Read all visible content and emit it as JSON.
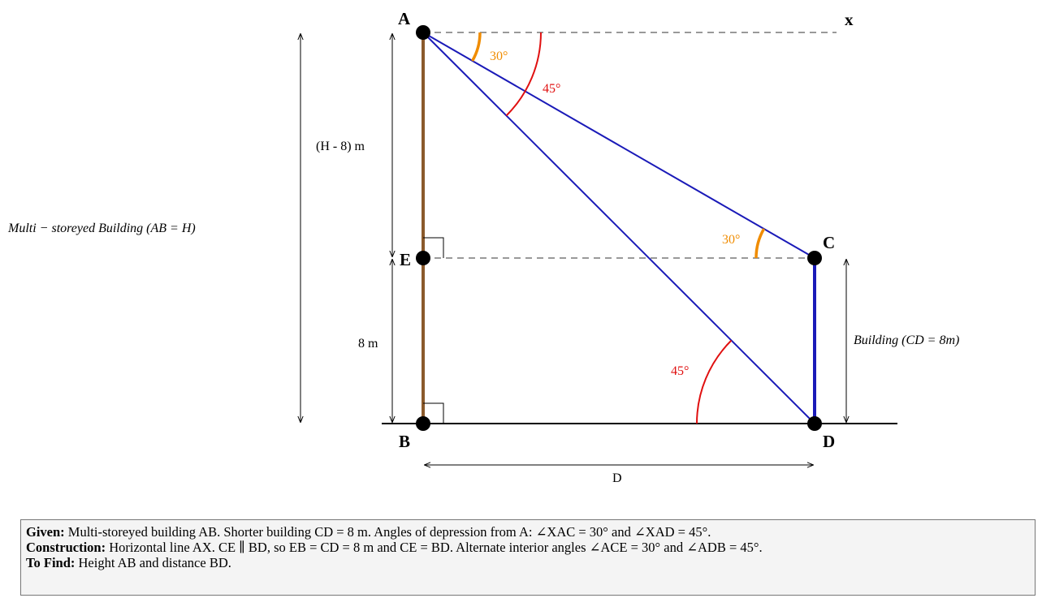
{
  "points": {
    "A": "A",
    "B": "B",
    "C": "C",
    "D": "D",
    "E": "E",
    "X": "x"
  },
  "angles": {
    "XAC": "30°",
    "XAD": "45°",
    "ACE": "30°",
    "ADB": "45°"
  },
  "dimensions": {
    "AE": "(H - 8) m",
    "EB": "8 m",
    "AB": "Multi − storeyed Building (AB = H)",
    "CD": "Building (CD = 8m)",
    "BD": "D"
  },
  "info": {
    "given": {
      "label": "Given:",
      "text": "Multi-storeyed building AB. Shorter building CD = 8 m. Angles of depression from A: ∠XAC = 30° and ∠XAD = 45°."
    },
    "construction": {
      "label": "Construction:",
      "text": "Horizontal line AX. CE ∥ BD, so EB = CD = 8 m and CE = BD. Alternate interior angles ∠ACE = 30° and ∠ADB = 45°."
    },
    "to_find": {
      "label": "To Find:",
      "text": "Height AB and distance BD."
    }
  }
}
